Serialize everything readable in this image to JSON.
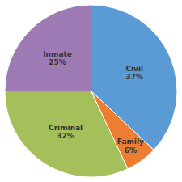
{
  "chart_data": {
    "type": "pie",
    "categories": [
      "Civil",
      "Family",
      "Criminal",
      "Inmate"
    ],
    "values": [
      37,
      6,
      32,
      25
    ],
    "value_labels": [
      "37%",
      "6%",
      "32%",
      "25%"
    ],
    "colors": [
      "#5b9bd5",
      "#ed7d31",
      "#a5bf5a",
      "#9e7bb5"
    ],
    "data_labels": true
  }
}
